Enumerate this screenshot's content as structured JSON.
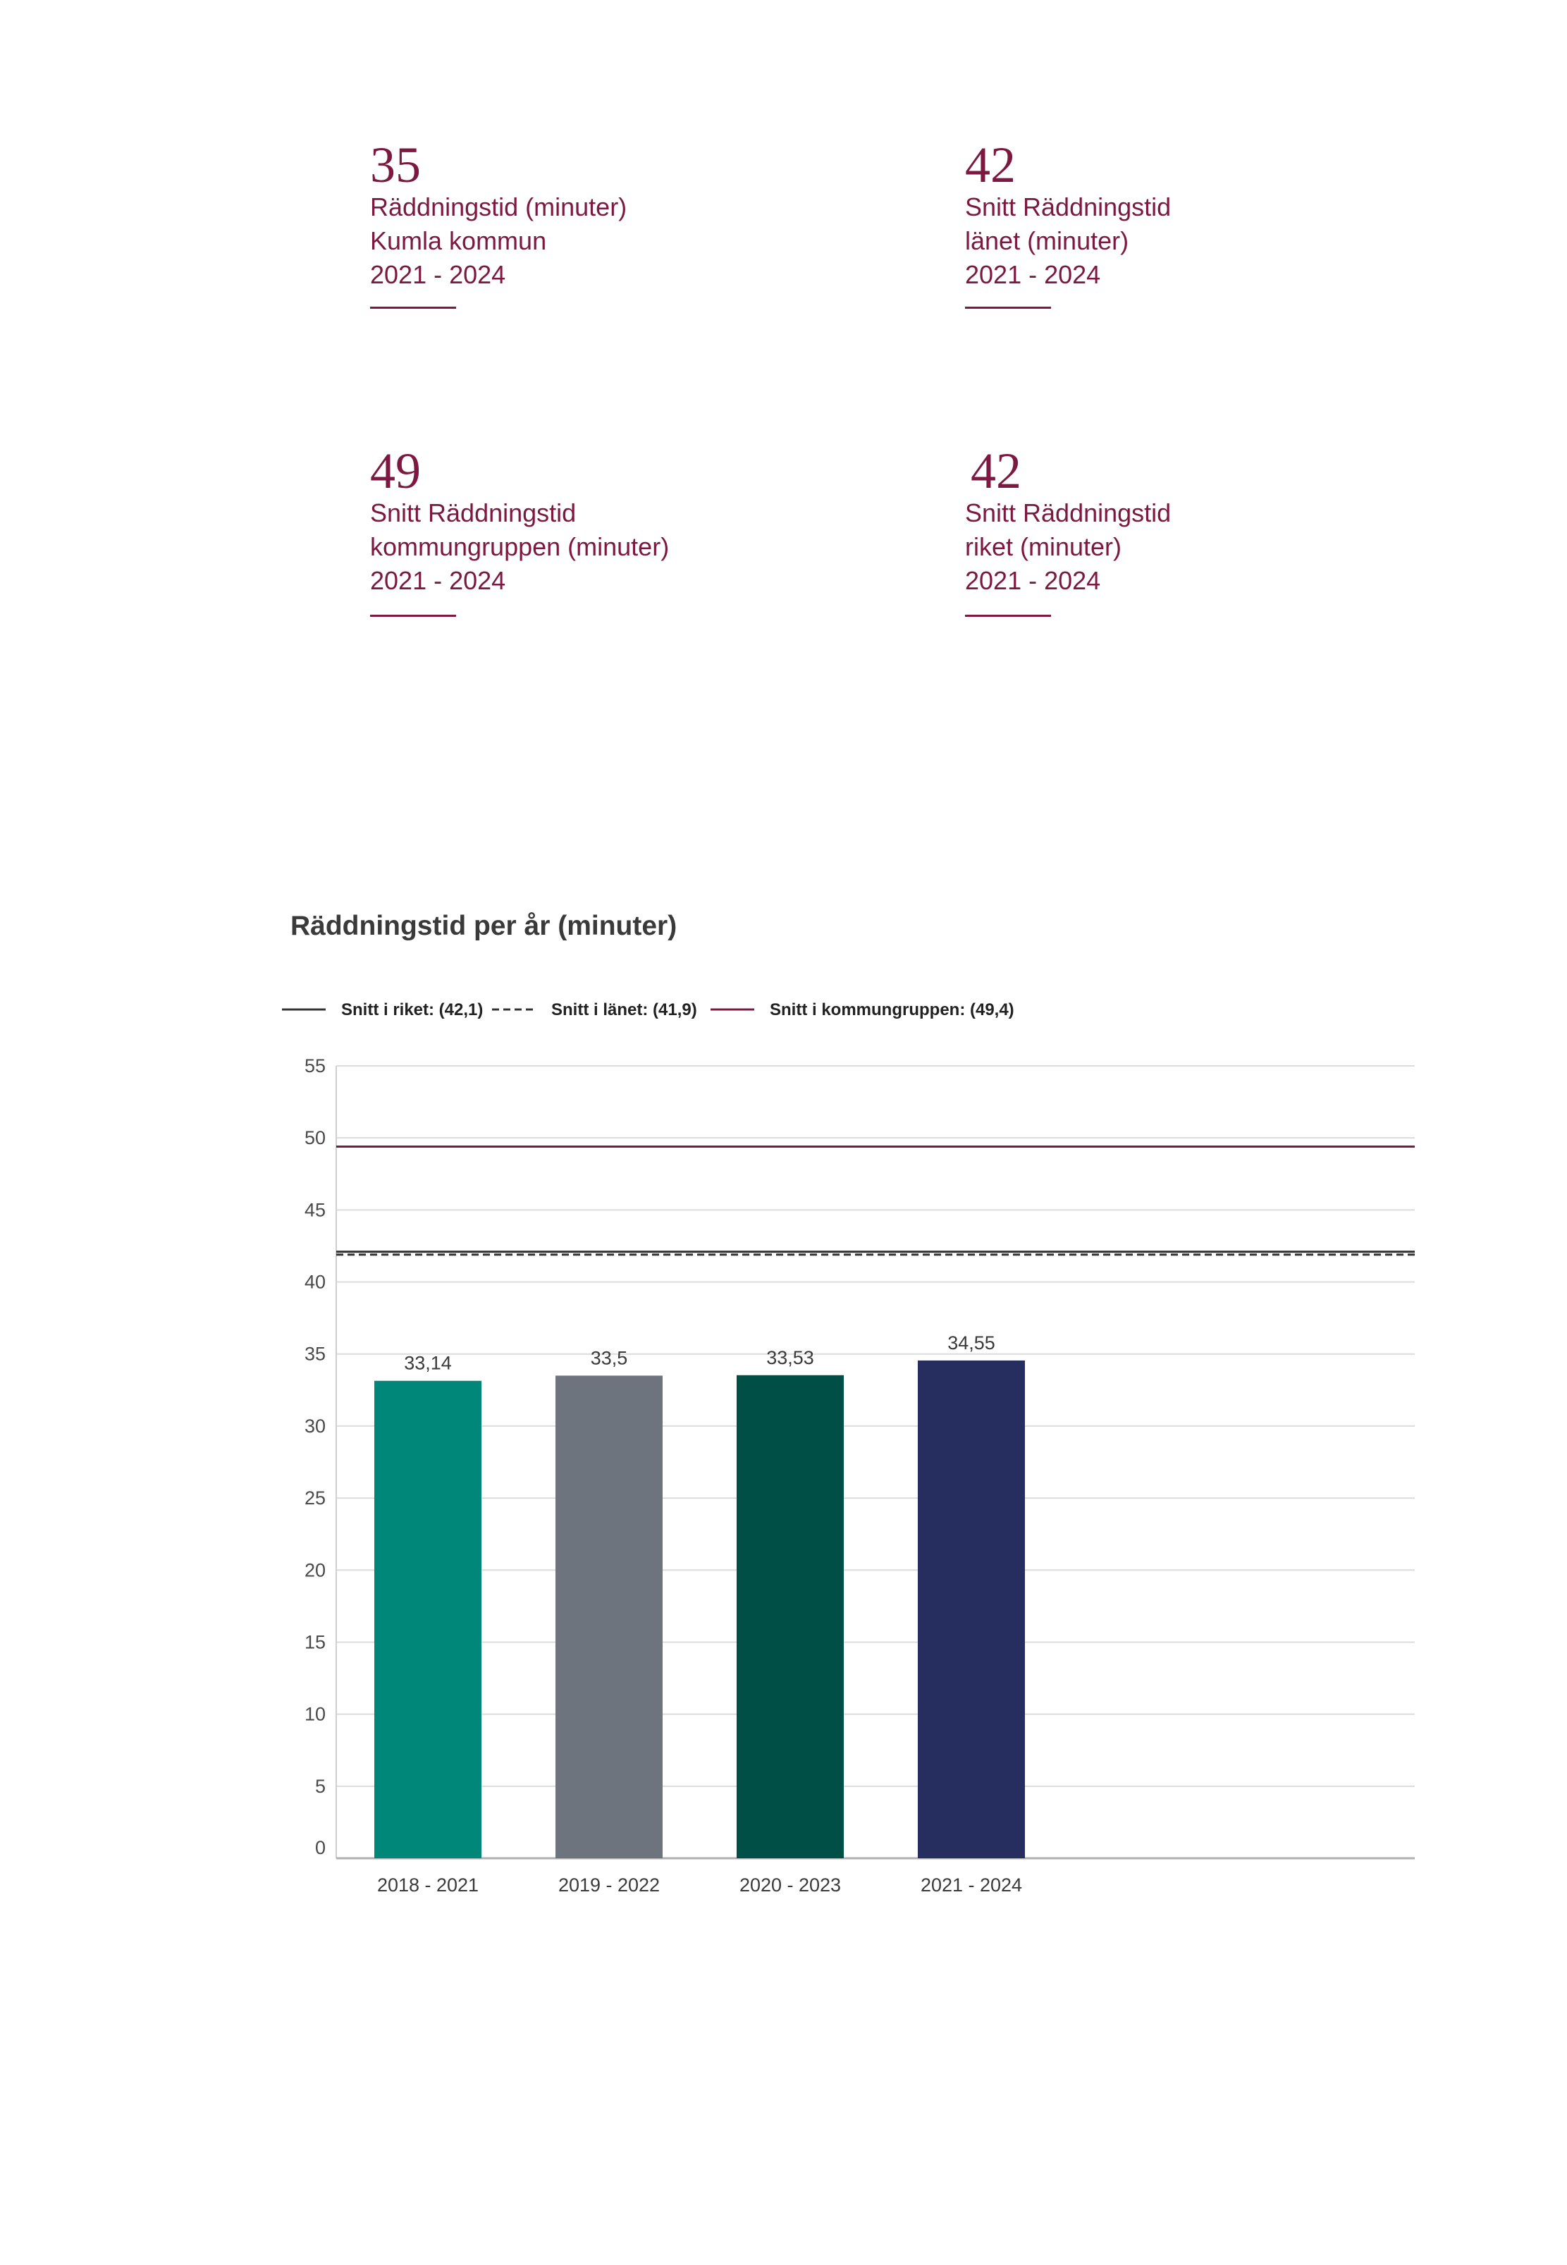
{
  "stats": [
    {
      "value": "35",
      "lines": [
        "Räddningstid (minuter)",
        "Kumla kommun",
        "2021 - 2024"
      ]
    },
    {
      "value": "42",
      "lines": [
        "Snitt Räddningstid",
        "länet (minuter)",
        "2021 - 2024"
      ]
    },
    {
      "value": "49",
      "lines": [
        "Snitt Räddningstid",
        "kommungruppen (minuter)",
        "2021 - 2024"
      ]
    },
    {
      "value": "42",
      "lines": [
        "Snitt Räddningstid",
        "riket (minuter)",
        "2021 - 2024"
      ]
    }
  ],
  "colors": {
    "accent": "#7d1840",
    "bars": [
      "#00877a",
      "#6e747d",
      "#004f46",
      "#252e5e"
    ],
    "riket_line": "#333333",
    "lanet_line": "#333333",
    "kommungruppen_line": "#7d1840",
    "grid": "#dcdcdc"
  },
  "chart_data": {
    "type": "bar",
    "title": "Räddningstid per år (minuter)",
    "categories": [
      "2018 - 2021",
      "2019 - 2022",
      "2020 - 2023",
      "2021 - 2024"
    ],
    "values": [
      33.14,
      33.5,
      33.53,
      34.55
    ],
    "value_labels": [
      "33,14",
      "33,5",
      "33,53",
      "34,55"
    ],
    "ylim": [
      0,
      55
    ],
    "yticks": [
      0,
      5,
      10,
      15,
      20,
      25,
      30,
      35,
      40,
      45,
      50,
      55
    ],
    "grid": true,
    "legend_position": "top-left",
    "reference_lines": [
      {
        "name": "Snitt i riket: (42,1)",
        "value": 42.1,
        "style": "solid"
      },
      {
        "name": "Snitt i länet: (41,9)",
        "value": 41.9,
        "style": "dashed"
      },
      {
        "name": "Snitt i kommungruppen: (49,4)",
        "value": 49.4,
        "style": "solid"
      }
    ]
  }
}
